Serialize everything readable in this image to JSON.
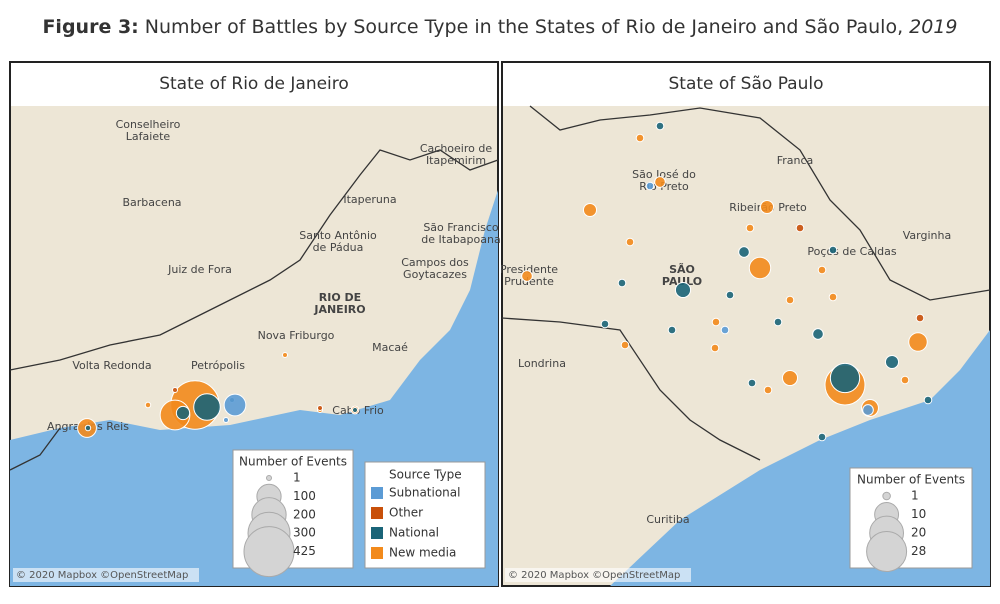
{
  "header": {
    "figure_label": "Figure 3:",
    "title": " Number of Battles by Source Type in the States of Rio de Janeiro and São Paulo, ",
    "year": "2019"
  },
  "source_type_legend": {
    "title": "Source Type",
    "types": [
      {
        "name": "Subnational",
        "color": "#5b9bd5"
      },
      {
        "name": "Other",
        "color": "#c8500a"
      },
      {
        "name": "National",
        "color": "#1a6478"
      },
      {
        "name": "New media",
        "color": "#f28a1c"
      }
    ]
  },
  "maps": [
    {
      "title": "State of Rio de Janeiro",
      "place_labels": [
        {
          "lines": [
            "Conselheiro",
            "Lafaiete"
          ]
        },
        {
          "lines": [
            "Cachoeiro de",
            "Itapemirim"
          ]
        },
        {
          "lines": [
            "Barbacena"
          ]
        },
        {
          "lines": [
            "Itaperuna"
          ]
        },
        {
          "lines": [
            "Santo Antônio",
            "de Pádua"
          ]
        },
        {
          "lines": [
            "São Francisco",
            "de Itabapoana"
          ]
        },
        {
          "lines": [
            "Juiz de Fora"
          ]
        },
        {
          "lines": [
            "Campos dos",
            "Goytacazes"
          ]
        },
        {
          "lines": [
            "RIO DE",
            "JANEIRO"
          ]
        },
        {
          "lines": [
            "Nova Friburgo"
          ]
        },
        {
          "lines": [
            "Macaé"
          ]
        },
        {
          "lines": [
            "Volta Redonda"
          ]
        },
        {
          "lines": [
            "Petrópolis"
          ]
        },
        {
          "lines": [
            "Cabo Frio"
          ]
        },
        {
          "lines": [
            "Angra dos Reis"
          ]
        }
      ],
      "series": [
        {
          "values": [
            80,
            3
          ]
        },
        {
          "values": [
            2,
            1
          ]
        },
        {
          "values": [
            120,
            30,
            5,
            2,
            2
          ]
        },
        {
          "values": [
            400,
            150,
            60,
            10,
            5,
            3,
            2
          ]
        }
      ],
      "size_legend": {
        "title": "Number of Events",
        "values": [
          1,
          100,
          200,
          300,
          425
        ]
      },
      "attribution": "© 2020 Mapbox ©OpenStreetMap"
    },
    {
      "title": "State of São Paulo",
      "place_labels": [
        {
          "lines": [
            "São José do",
            "Rio Preto"
          ]
        },
        {
          "lines": [
            "Franca"
          ]
        },
        {
          "lines": [
            "Ribeirão Preto"
          ]
        },
        {
          "lines": [
            "Presidente",
            "Prudente"
          ]
        },
        {
          "lines": [
            "SÃO",
            "PAULO"
          ]
        },
        {
          "lines": [
            "Poços de Caldas"
          ]
        },
        {
          "lines": [
            "Varginha"
          ]
        },
        {
          "lines": [
            "Londrina"
          ]
        },
        {
          "lines": [
            "Curitiba"
          ]
        }
      ],
      "series": [
        {
          "values": [
            2,
            1,
            1
          ]
        },
        {
          "values": [
            1,
            1
          ]
        },
        {
          "values": [
            15,
            4,
            3,
            2,
            2,
            1,
            1,
            1,
            1,
            1,
            1,
            1,
            1,
            1,
            1
          ]
        },
        {
          "values": [
            28,
            8,
            6,
            5,
            4,
            3,
            3,
            2,
            2,
            1,
            1,
            1,
            1,
            1,
            1,
            1,
            1,
            1,
            1,
            1
          ]
        }
      ],
      "size_legend": {
        "title": "Number of Events",
        "values": [
          1,
          10,
          20,
          28
        ]
      },
      "attribution": "© 2020 Mapbox ©OpenStreetMap"
    }
  ]
}
